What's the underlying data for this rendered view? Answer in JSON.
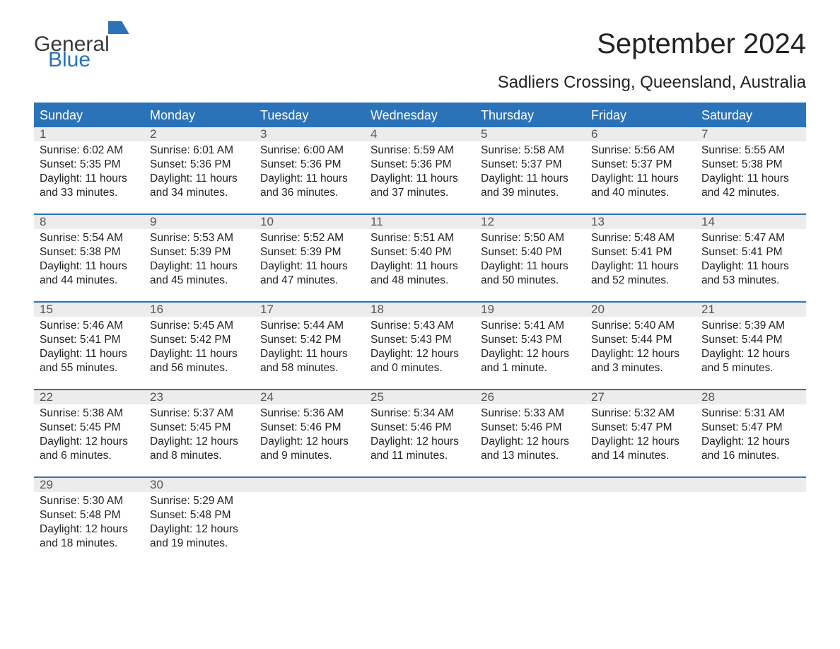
{
  "logo": {
    "part1": "General",
    "part2": "Blue"
  },
  "title": "September 2024",
  "location": "Sadliers Crossing, Queensland, Australia",
  "colors": {
    "header_bg": "#2a73b8",
    "header_text": "#ffffff",
    "daynum_bg": "#ececec",
    "daynum_text": "#555555",
    "body_text": "#222222",
    "page_bg": "#ffffff",
    "rule": "#2a73b8"
  },
  "fonts": {
    "title_size": 40,
    "location_size": 24,
    "header_size": 18,
    "daynum_size": 17,
    "body_size": 15.5
  },
  "day_headers": [
    "Sunday",
    "Monday",
    "Tuesday",
    "Wednesday",
    "Thursday",
    "Friday",
    "Saturday"
  ],
  "labels": {
    "sunrise": "Sunrise:",
    "sunset": "Sunset:",
    "daylight": "Daylight:"
  },
  "weeks": [
    [
      {
        "n": "1",
        "sunrise": "6:02 AM",
        "sunset": "5:35 PM",
        "daylight1": "11 hours",
        "daylight2": "and 33 minutes."
      },
      {
        "n": "2",
        "sunrise": "6:01 AM",
        "sunset": "5:36 PM",
        "daylight1": "11 hours",
        "daylight2": "and 34 minutes."
      },
      {
        "n": "3",
        "sunrise": "6:00 AM",
        "sunset": "5:36 PM",
        "daylight1": "11 hours",
        "daylight2": "and 36 minutes."
      },
      {
        "n": "4",
        "sunrise": "5:59 AM",
        "sunset": "5:36 PM",
        "daylight1": "11 hours",
        "daylight2": "and 37 minutes."
      },
      {
        "n": "5",
        "sunrise": "5:58 AM",
        "sunset": "5:37 PM",
        "daylight1": "11 hours",
        "daylight2": "and 39 minutes."
      },
      {
        "n": "6",
        "sunrise": "5:56 AM",
        "sunset": "5:37 PM",
        "daylight1": "11 hours",
        "daylight2": "and 40 minutes."
      },
      {
        "n": "7",
        "sunrise": "5:55 AM",
        "sunset": "5:38 PM",
        "daylight1": "11 hours",
        "daylight2": "and 42 minutes."
      }
    ],
    [
      {
        "n": "8",
        "sunrise": "5:54 AM",
        "sunset": "5:38 PM",
        "daylight1": "11 hours",
        "daylight2": "and 44 minutes."
      },
      {
        "n": "9",
        "sunrise": "5:53 AM",
        "sunset": "5:39 PM",
        "daylight1": "11 hours",
        "daylight2": "and 45 minutes."
      },
      {
        "n": "10",
        "sunrise": "5:52 AM",
        "sunset": "5:39 PM",
        "daylight1": "11 hours",
        "daylight2": "and 47 minutes."
      },
      {
        "n": "11",
        "sunrise": "5:51 AM",
        "sunset": "5:40 PM",
        "daylight1": "11 hours",
        "daylight2": "and 48 minutes."
      },
      {
        "n": "12",
        "sunrise": "5:50 AM",
        "sunset": "5:40 PM",
        "daylight1": "11 hours",
        "daylight2": "and 50 minutes."
      },
      {
        "n": "13",
        "sunrise": "5:48 AM",
        "sunset": "5:41 PM",
        "daylight1": "11 hours",
        "daylight2": "and 52 minutes."
      },
      {
        "n": "14",
        "sunrise": "5:47 AM",
        "sunset": "5:41 PM",
        "daylight1": "11 hours",
        "daylight2": "and 53 minutes."
      }
    ],
    [
      {
        "n": "15",
        "sunrise": "5:46 AM",
        "sunset": "5:41 PM",
        "daylight1": "11 hours",
        "daylight2": "and 55 minutes."
      },
      {
        "n": "16",
        "sunrise": "5:45 AM",
        "sunset": "5:42 PM",
        "daylight1": "11 hours",
        "daylight2": "and 56 minutes."
      },
      {
        "n": "17",
        "sunrise": "5:44 AM",
        "sunset": "5:42 PM",
        "daylight1": "11 hours",
        "daylight2": "and 58 minutes."
      },
      {
        "n": "18",
        "sunrise": "5:43 AM",
        "sunset": "5:43 PM",
        "daylight1": "12 hours",
        "daylight2": "and 0 minutes."
      },
      {
        "n": "19",
        "sunrise": "5:41 AM",
        "sunset": "5:43 PM",
        "daylight1": "12 hours",
        "daylight2": "and 1 minute."
      },
      {
        "n": "20",
        "sunrise": "5:40 AM",
        "sunset": "5:44 PM",
        "daylight1": "12 hours",
        "daylight2": "and 3 minutes."
      },
      {
        "n": "21",
        "sunrise": "5:39 AM",
        "sunset": "5:44 PM",
        "daylight1": "12 hours",
        "daylight2": "and 5 minutes."
      }
    ],
    [
      {
        "n": "22",
        "sunrise": "5:38 AM",
        "sunset": "5:45 PM",
        "daylight1": "12 hours",
        "daylight2": "and 6 minutes."
      },
      {
        "n": "23",
        "sunrise": "5:37 AM",
        "sunset": "5:45 PM",
        "daylight1": "12 hours",
        "daylight2": "and 8 minutes."
      },
      {
        "n": "24",
        "sunrise": "5:36 AM",
        "sunset": "5:46 PM",
        "daylight1": "12 hours",
        "daylight2": "and 9 minutes."
      },
      {
        "n": "25",
        "sunrise": "5:34 AM",
        "sunset": "5:46 PM",
        "daylight1": "12 hours",
        "daylight2": "and 11 minutes."
      },
      {
        "n": "26",
        "sunrise": "5:33 AM",
        "sunset": "5:46 PM",
        "daylight1": "12 hours",
        "daylight2": "and 13 minutes."
      },
      {
        "n": "27",
        "sunrise": "5:32 AM",
        "sunset": "5:47 PM",
        "daylight1": "12 hours",
        "daylight2": "and 14 minutes."
      },
      {
        "n": "28",
        "sunrise": "5:31 AM",
        "sunset": "5:47 PM",
        "daylight1": "12 hours",
        "daylight2": "and 16 minutes."
      }
    ],
    [
      {
        "n": "29",
        "sunrise": "5:30 AM",
        "sunset": "5:48 PM",
        "daylight1": "12 hours",
        "daylight2": "and 18 minutes."
      },
      {
        "n": "30",
        "sunrise": "5:29 AM",
        "sunset": "5:48 PM",
        "daylight1": "12 hours",
        "daylight2": "and 19 minutes."
      },
      null,
      null,
      null,
      null,
      null
    ]
  ]
}
